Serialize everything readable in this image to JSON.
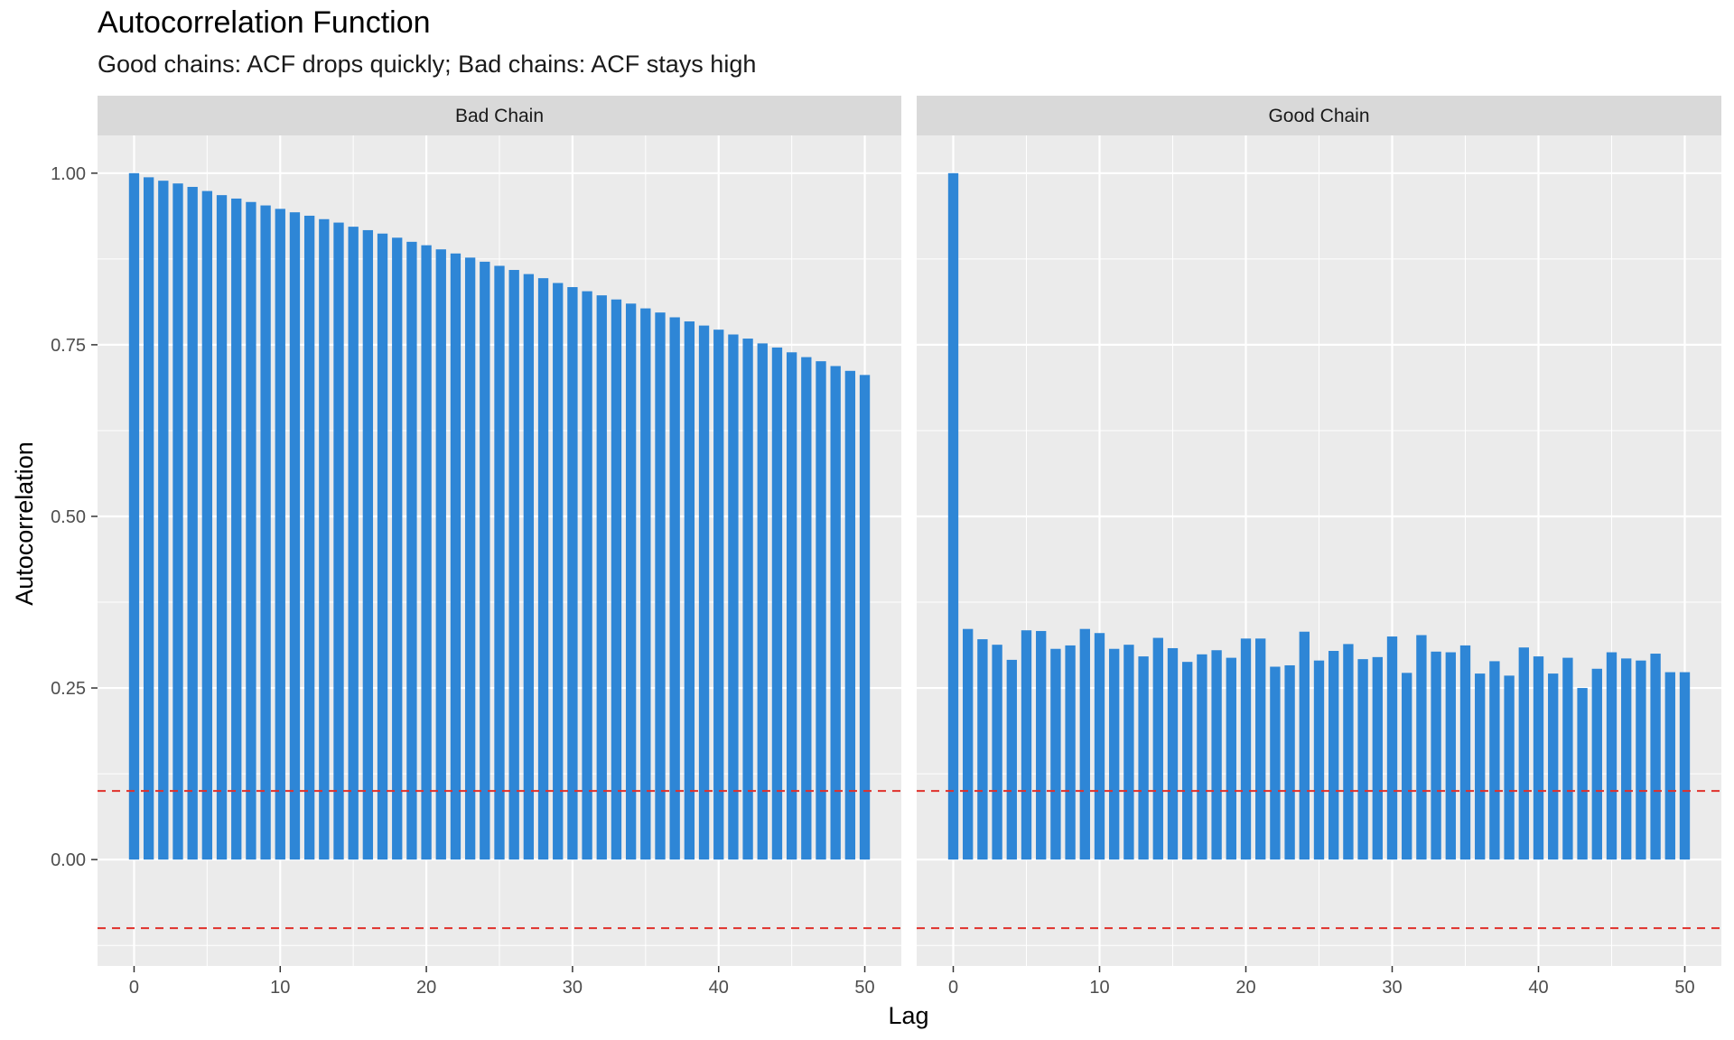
{
  "chart_data": {
    "type": "bar",
    "title": "Autocorrelation Function",
    "subtitle": "Good chains: ACF drops quickly; Bad chains: ACF stays high",
    "xlabel": "Lag",
    "ylabel": "Autocorrelation",
    "xlim": [
      -2.5,
      52.5
    ],
    "ylim": [
      -0.155,
      1.055
    ],
    "x_ticks": [
      0,
      10,
      20,
      30,
      40,
      50
    ],
    "y_ticks": [
      0.0,
      0.25,
      0.5,
      0.75,
      1.0
    ],
    "y_tick_labels": [
      "0.00",
      "0.25",
      "0.50",
      "0.75",
      "1.00"
    ],
    "grid": true,
    "bar_color": "#2E86D6",
    "reference_lines": {
      "values": [
        0.1,
        -0.1
      ],
      "color": "#E0302A",
      "style": "dashed"
    },
    "panels": [
      {
        "name": "Bad Chain",
        "x": [
          0,
          1,
          2,
          3,
          4,
          5,
          6,
          7,
          8,
          9,
          10,
          11,
          12,
          13,
          14,
          15,
          16,
          17,
          18,
          19,
          20,
          21,
          22,
          23,
          24,
          25,
          26,
          27,
          28,
          29,
          30,
          31,
          32,
          33,
          34,
          35,
          36,
          37,
          38,
          39,
          40,
          41,
          42,
          43,
          44,
          45,
          46,
          47,
          48,
          49,
          50
        ],
        "values": [
          1.0,
          0.994,
          0.989,
          0.985,
          0.98,
          0.974,
          0.968,
          0.963,
          0.958,
          0.953,
          0.948,
          0.943,
          0.938,
          0.933,
          0.928,
          0.922,
          0.917,
          0.912,
          0.906,
          0.9,
          0.895,
          0.889,
          0.883,
          0.877,
          0.871,
          0.865,
          0.859,
          0.853,
          0.847,
          0.84,
          0.834,
          0.828,
          0.822,
          0.816,
          0.81,
          0.803,
          0.797,
          0.79,
          0.784,
          0.778,
          0.772,
          0.765,
          0.759,
          0.752,
          0.746,
          0.739,
          0.732,
          0.726,
          0.719,
          0.712,
          0.706
        ]
      },
      {
        "name": "Good Chain",
        "x": [
          0,
          1,
          2,
          3,
          4,
          5,
          6,
          7,
          8,
          9,
          10,
          11,
          12,
          13,
          14,
          15,
          16,
          17,
          18,
          19,
          20,
          21,
          22,
          23,
          24,
          25,
          26,
          27,
          28,
          29,
          30,
          31,
          32,
          33,
          34,
          35,
          36,
          37,
          38,
          39,
          40,
          41,
          42,
          43,
          44,
          45,
          46,
          47,
          48,
          49,
          50
        ],
        "values": [
          1.0,
          0.336,
          0.321,
          0.313,
          0.291,
          0.334,
          0.333,
          0.307,
          0.312,
          0.336,
          0.33,
          0.307,
          0.313,
          0.296,
          0.323,
          0.308,
          0.288,
          0.299,
          0.305,
          0.294,
          0.322,
          0.322,
          0.281,
          0.283,
          0.332,
          0.29,
          0.304,
          0.314,
          0.292,
          0.295,
          0.325,
          0.272,
          0.327,
          0.303,
          0.302,
          0.312,
          0.271,
          0.289,
          0.268,
          0.309,
          0.296,
          0.271,
          0.294,
          0.25,
          0.278,
          0.302,
          0.293,
          0.29,
          0.3,
          0.273,
          0.273
        ]
      }
    ]
  }
}
